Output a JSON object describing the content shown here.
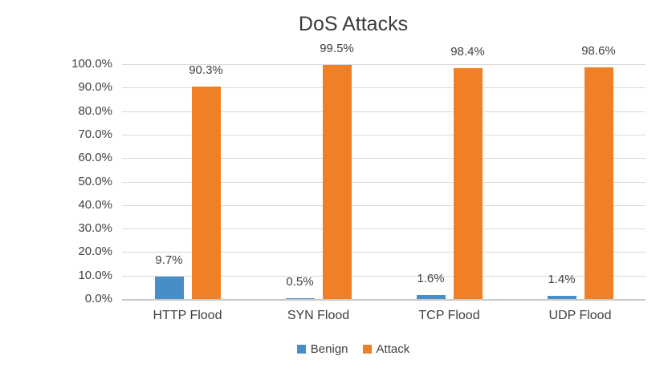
{
  "chart_data": {
    "type": "bar",
    "title": "DoS Attacks",
    "categories": [
      "HTTP Flood",
      "SYN Flood",
      "TCP Flood",
      "UDP Flood"
    ],
    "series": [
      {
        "name": "Benign",
        "color": "#478dc8",
        "values": [
          9.7,
          0.5,
          1.6,
          1.4
        ],
        "data_labels": [
          "9.7%",
          "0.5%",
          "1.6%",
          "1.4%"
        ]
      },
      {
        "name": "Attack",
        "color": "#f08025",
        "values": [
          90.3,
          99.5,
          98.4,
          98.6
        ],
        "data_labels": [
          "90.3%",
          "99.5%",
          "98.4%",
          "98.6%"
        ]
      }
    ],
    "y_axis": {
      "min": 0,
      "max": 100,
      "step": 10,
      "tick_labels": [
        "0.0%",
        "10.0%",
        "20.0%",
        "30.0%",
        "40.0%",
        "50.0%",
        "60.0%",
        "70.0%",
        "80.0%",
        "90.0%",
        "100.0%"
      ]
    },
    "grid": true,
    "legend_position": "bottom",
    "colors": {
      "gridline": "#d9d9d9",
      "axis_line": "#c9c9c9",
      "text": "#404040",
      "title": "#3b3b3b",
      "background": "#ffffff"
    }
  }
}
